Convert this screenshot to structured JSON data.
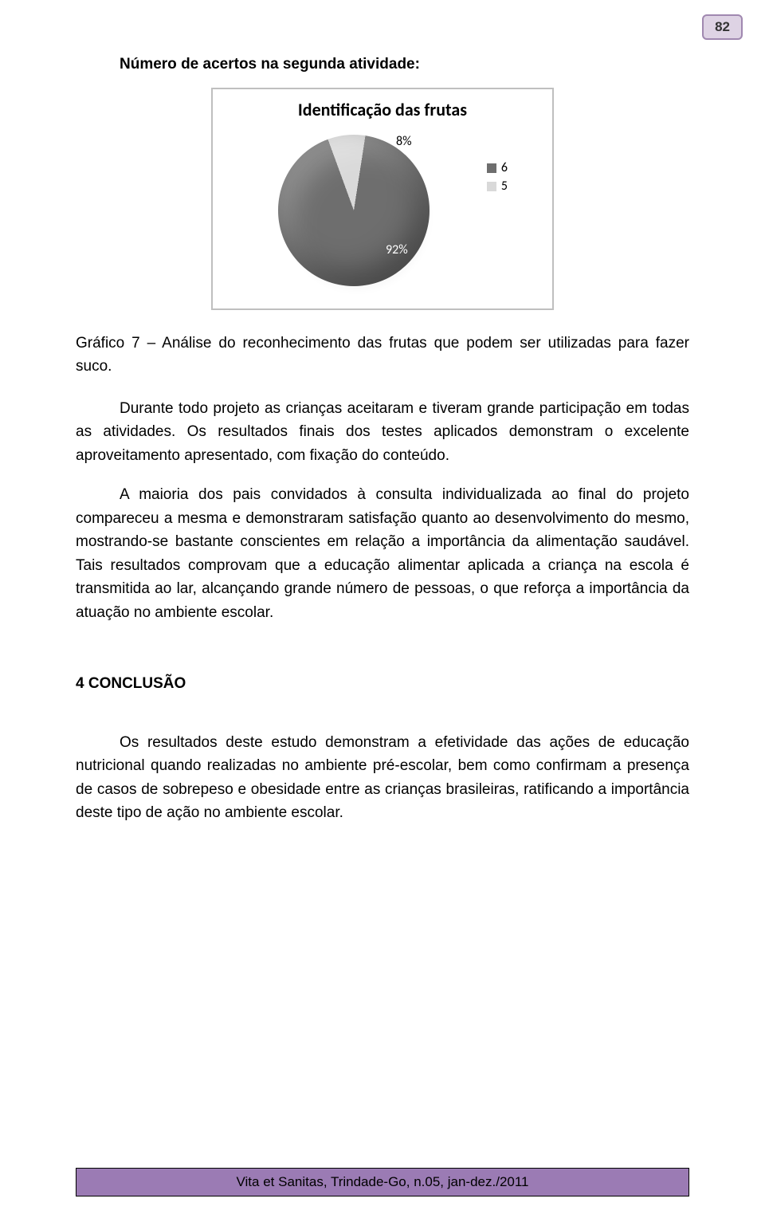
{
  "page_number": "82",
  "heading": "Número de acertos na segunda atividade:",
  "chart": {
    "type": "pie",
    "title": "Identificação das frutas",
    "slices": [
      {
        "label": "8%",
        "value": 8,
        "color": "#d9d9d9",
        "legend_label": "5"
      },
      {
        "label": "92%",
        "value": 92,
        "color": "#6e6e6e",
        "legend_label": "6"
      }
    ],
    "legend": [
      {
        "swatch": "#6e6e6e",
        "label": "6"
      },
      {
        "swatch": "#d9d9d9",
        "label": "5"
      }
    ],
    "background": "#ffffff",
    "border_color": "#bfbfbf",
    "label_font_size": 16,
    "title_font_size": 22
  },
  "caption": "Gráfico 7 – Análise do reconhecimento das frutas que podem ser utilizadas para fazer suco.",
  "para1": "Durante todo projeto as crianças aceitaram e tiveram grande participação em todas as atividades. Os resultados finais dos testes aplicados demonstram o excelente aproveitamento apresentado, com fixação do conteúdo.",
  "para2": "A maioria dos pais convidados à consulta individualizada ao final do projeto compareceu a mesma e demonstraram satisfação quanto ao desenvolvimento do mesmo, mostrando-se bastante conscientes em relação a importância da alimentação saudável. Tais resultados comprovam que a educação alimentar aplicada a criança na escola é transmitida ao lar, alcançando grande número de pessoas, o que reforça a importância da atuação no ambiente escolar.",
  "conclusion_heading": "4 CONCLUSÃO",
  "para3": "Os resultados deste estudo demonstram a efetividade das ações de educação nutricional quando realizadas no ambiente pré-escolar, bem como confirmam a presença de casos de sobrepeso e obesidade entre as crianças brasileiras, ratificando a importância deste tipo de ação no ambiente escolar.",
  "footer": "Vita et Sanitas, Trindade-Go, n.05, jan-dez./2011",
  "footer_bg": "#9b7bb4"
}
